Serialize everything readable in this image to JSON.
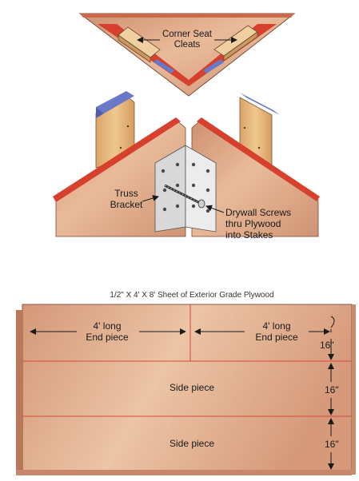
{
  "top_view": {
    "label_line1": "Corner Seat",
    "label_line2": "Cleats"
  },
  "corner_detail": {
    "bracket_line1": "Truss",
    "bracket_line2": "Bracket",
    "screws_line1": "Drywall Screws",
    "screws_line2": "thru Plywood",
    "screws_line3": "into Stakes"
  },
  "cut_sheet": {
    "caption": "1/2\" X 4' X 8' Sheet of Exterior Grade Plywood",
    "end_piece_left_length": "4' long",
    "end_piece_left_name": "End piece",
    "end_piece_right_length": "4' long",
    "end_piece_right_name": "End piece",
    "side_piece_1": "Side piece",
    "side_piece_2": "Side piece",
    "dim_row_1": "16\"",
    "dim_row_2": "16\"",
    "dim_row_3": "16\""
  },
  "colors": {
    "plywood": "#d9a07e",
    "plywood_light": "#ecc3a3",
    "plywood_edge": "#b9785a",
    "red_edge": "#d6402c",
    "blue_edge": "#6a78c8",
    "stake": "#e3b27a",
    "bracket_metal": "#dcdcdc"
  }
}
